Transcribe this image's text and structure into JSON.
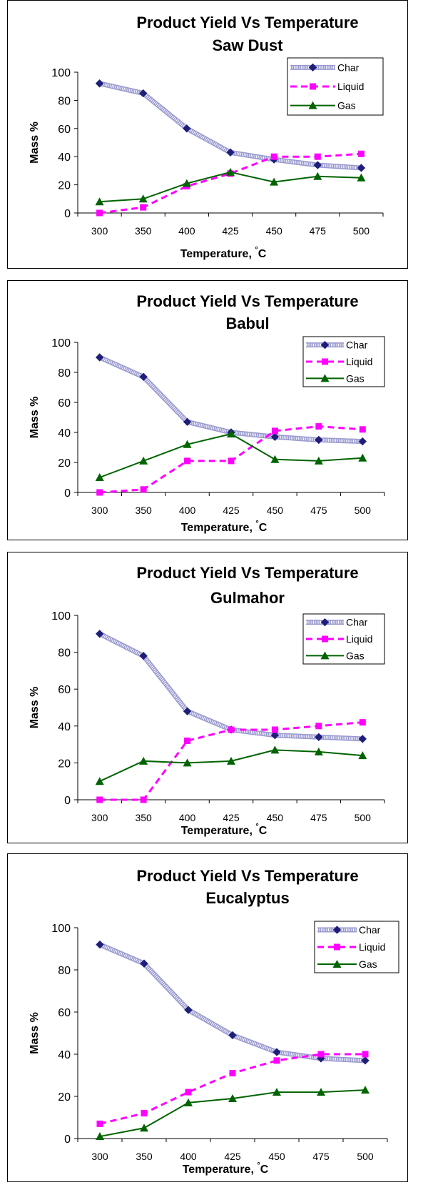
{
  "chart_data": [
    {
      "type": "line",
      "title": "Product Yield Vs Temperature",
      "subtitle": "Saw Dust",
      "xlabel": "Temperature, ",
      "xlabel_unit": "°C",
      "ylabel": "Mass %",
      "categories": [
        "300",
        "350",
        "400",
        "425",
        "450",
        "475",
        "500"
      ],
      "ylim": [
        0,
        100
      ],
      "yticks": [
        "0",
        "20",
        "40",
        "60",
        "80",
        "100"
      ],
      "grid": false,
      "legend_position": "top-right",
      "series": [
        {
          "name": "Char",
          "values": [
            92,
            85,
            60,
            43,
            38,
            34,
            32
          ],
          "color": "#1f1f7a",
          "marker": "diamond",
          "style": "hatched"
        },
        {
          "name": "Liquid",
          "values": [
            0,
            4,
            19,
            28,
            40,
            40,
            42
          ],
          "color": "#ff00ff",
          "marker": "square",
          "style": "dashed"
        },
        {
          "name": "Gas",
          "values": [
            8,
            10,
            21,
            29,
            22,
            26,
            25
          ],
          "color": "#006400",
          "marker": "triangle",
          "style": "solid"
        }
      ]
    },
    {
      "type": "line",
      "title": "Product Yield Vs Temperature",
      "subtitle": "Babul",
      "xlabel": "Temperature, ",
      "xlabel_unit": "°C",
      "ylabel": "Mass %",
      "categories": [
        "300",
        "350",
        "400",
        "425",
        "450",
        "475",
        "500"
      ],
      "ylim": [
        0,
        100
      ],
      "yticks": [
        "0",
        "20",
        "40",
        "60",
        "80",
        "100"
      ],
      "grid": false,
      "legend_position": "top-right",
      "series": [
        {
          "name": "Char",
          "values": [
            90,
            77,
            47,
            40,
            37,
            35,
            34
          ],
          "color": "#1f1f7a",
          "marker": "diamond",
          "style": "hatched"
        },
        {
          "name": "Liquid",
          "values": [
            0,
            2,
            21,
            21,
            41,
            44,
            42
          ],
          "color": "#ff00ff",
          "marker": "square",
          "style": "dashed"
        },
        {
          "name": "Gas",
          "values": [
            10,
            21,
            32,
            39,
            22,
            21,
            23
          ],
          "color": "#006400",
          "marker": "triangle",
          "style": "solid"
        }
      ]
    },
    {
      "type": "line",
      "title": "Product Yield Vs Temperature",
      "subtitle": "Gulmahor",
      "xlabel": "Temperature, ",
      "xlabel_unit": "°C",
      "ylabel": "Mass %",
      "categories": [
        "300",
        "350",
        "400",
        "425",
        "450",
        "475",
        "500"
      ],
      "ylim": [
        0,
        100
      ],
      "yticks": [
        "0",
        "20",
        "40",
        "60",
        "80",
        "100"
      ],
      "grid": false,
      "legend_position": "top-right",
      "series": [
        {
          "name": "Char",
          "values": [
            90,
            78,
            48,
            38,
            35,
            34,
            33
          ],
          "color": "#1f1f7a",
          "marker": "diamond",
          "style": "hatched"
        },
        {
          "name": "Liquid",
          "values": [
            0,
            0,
            32,
            38,
            38,
            40,
            42
          ],
          "color": "#ff00ff",
          "marker": "square",
          "style": "dashed"
        },
        {
          "name": "Gas",
          "values": [
            10,
            21,
            20,
            21,
            27,
            26,
            24
          ],
          "color": "#006400",
          "marker": "triangle",
          "style": "solid"
        }
      ]
    },
    {
      "type": "line",
      "title": "Product Yield Vs Temperature",
      "subtitle": "Eucalyptus",
      "xlabel": "Temperature, ",
      "xlabel_unit": "°C",
      "ylabel": "Mass %",
      "categories": [
        "300",
        "350",
        "400",
        "425",
        "450",
        "475",
        "500"
      ],
      "ylim": [
        0,
        100
      ],
      "yticks": [
        "0",
        "20",
        "40",
        "60",
        "80",
        "100"
      ],
      "grid": false,
      "legend_position": "top-right",
      "series": [
        {
          "name": "Char",
          "values": [
            92,
            83,
            61,
            49,
            41,
            38,
            37
          ],
          "color": "#1f1f7a",
          "marker": "diamond",
          "style": "hatched"
        },
        {
          "name": "Liquid",
          "values": [
            7,
            12,
            22,
            31,
            37,
            40,
            40
          ],
          "color": "#ff00ff",
          "marker": "square",
          "style": "dashed"
        },
        {
          "name": "Gas",
          "values": [
            1,
            5,
            17,
            19,
            22,
            22,
            23
          ],
          "color": "#006400",
          "marker": "triangle",
          "style": "solid"
        }
      ]
    }
  ]
}
